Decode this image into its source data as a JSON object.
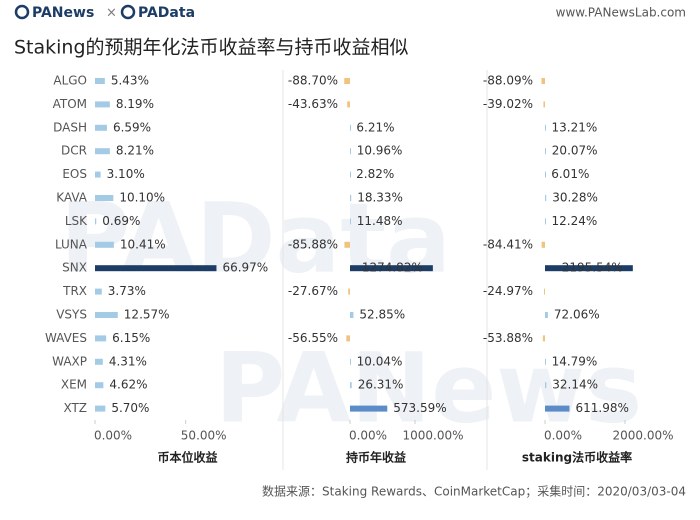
{
  "header": {
    "logo_left": "PANews",
    "logo_sep": "×",
    "logo_right": "PAData",
    "url": "www.PANewsLab.com"
  },
  "title": "Staking的预期年化法币收益率与持币收益相似",
  "watermarks": [
    "PAData",
    "PANews"
  ],
  "source": "数据来源：Staking Rewards、CoinMarketCap；采集时间：2020/03/03-04",
  "chart_data": [
    {
      "type": "bar",
      "orientation": "horizontal",
      "xlabel": "币本位收益",
      "categories": [
        "ALGO",
        "ATOM",
        "DASH",
        "DCR",
        "EOS",
        "KAVA",
        "LSK",
        "LUNA",
        "SNX",
        "TRX",
        "VSYS",
        "WAVES",
        "WAXP",
        "XEM",
        "XTZ"
      ],
      "values": [
        5.43,
        8.19,
        6.59,
        8.21,
        3.1,
        10.1,
        0.69,
        10.41,
        66.97,
        3.73,
        12.57,
        6.15,
        4.31,
        4.62,
        5.7
      ],
      "value_labels": [
        "5.43%",
        "8.19%",
        "6.59%",
        "8.21%",
        "3.10%",
        "10.10%",
        "0.69%",
        "10.41%",
        "66.97%",
        "3.73%",
        "12.57%",
        "6.15%",
        "4.31%",
        "4.62%",
        "5.70%"
      ],
      "colors": [
        "#a4cbe5",
        "#a4cbe5",
        "#a4cbe5",
        "#a4cbe5",
        "#a4cbe5",
        "#a4cbe5",
        "#a4cbe5",
        "#a4cbe5",
        "#1d3c66",
        "#a4cbe5",
        "#a4cbe5",
        "#a4cbe5",
        "#a4cbe5",
        "#a4cbe5",
        "#a4cbe5"
      ],
      "xlim": [
        0,
        102
      ],
      "xticks": [
        {
          "value": 0,
          "label": "0.00%"
        },
        {
          "value": 50,
          "label": "50.00%"
        }
      ]
    },
    {
      "type": "bar",
      "orientation": "horizontal",
      "xlabel": "持币年收益",
      "values": [
        -88.7,
        -43.63,
        6.21,
        10.96,
        2.82,
        18.33,
        11.48,
        -85.88,
        1274.82,
        -27.67,
        52.85,
        -56.55,
        10.04,
        26.31,
        573.59
      ],
      "value_labels": [
        "-88.70%",
        "-43.63%",
        "6.21%",
        "10.96%",
        "2.82%",
        "18.33%",
        "11.48%",
        "-85.88%",
        "1274.82%",
        "-27.67%",
        "52.85%",
        "-56.55%",
        "10.04%",
        "26.31%",
        "573.59%"
      ],
      "colors": [
        "#f2c27f",
        "#f2c27f",
        "#a4cbe5",
        "#a4cbe5",
        "#a4cbe5",
        "#a4cbe5",
        "#a4cbe5",
        "#f2c27f",
        "#1d3c66",
        "#f2c27f",
        "#a4cbe5",
        "#f2c27f",
        "#a4cbe5",
        "#a4cbe5",
        "#5b8cc8"
      ],
      "xlim": [
        -1000,
        1800
      ],
      "xticks": [
        {
          "value": 0,
          "label": "0.00%"
        },
        {
          "value": 1000,
          "label": "1000.00%"
        }
      ]
    },
    {
      "type": "bar",
      "orientation": "horizontal",
      "xlabel": "staking法币收益率",
      "values": [
        -88.09,
        -39.02,
        13.21,
        20.07,
        6.01,
        30.28,
        12.24,
        -84.41,
        2195.54,
        -24.97,
        72.06,
        -53.88,
        14.79,
        32.14,
        611.98
      ],
      "value_labels": [
        "-88.09%",
        "-39.02%",
        "13.21%",
        "20.07%",
        "6.01%",
        "30.28%",
        "12.24%",
        "-84.41%",
        "2195.54%",
        "-24.97%",
        "72.06%",
        "-53.88%",
        "14.79%",
        "32.14%",
        "611.98%"
      ],
      "colors": [
        "#f2c27f",
        "#f2c27f",
        "#a4cbe5",
        "#a4cbe5",
        "#a4cbe5",
        "#a4cbe5",
        "#a4cbe5",
        "#f2c27f",
        "#1d3c66",
        "#f2c27f",
        "#a4cbe5",
        "#f2c27f",
        "#a4cbe5",
        "#a4cbe5",
        "#5b8cc8"
      ],
      "xlim": [
        -1400,
        3000
      ],
      "xticks": [
        {
          "value": 0,
          "label": "0.00%"
        },
        {
          "value": 2000,
          "label": "2000.00%"
        }
      ]
    }
  ]
}
